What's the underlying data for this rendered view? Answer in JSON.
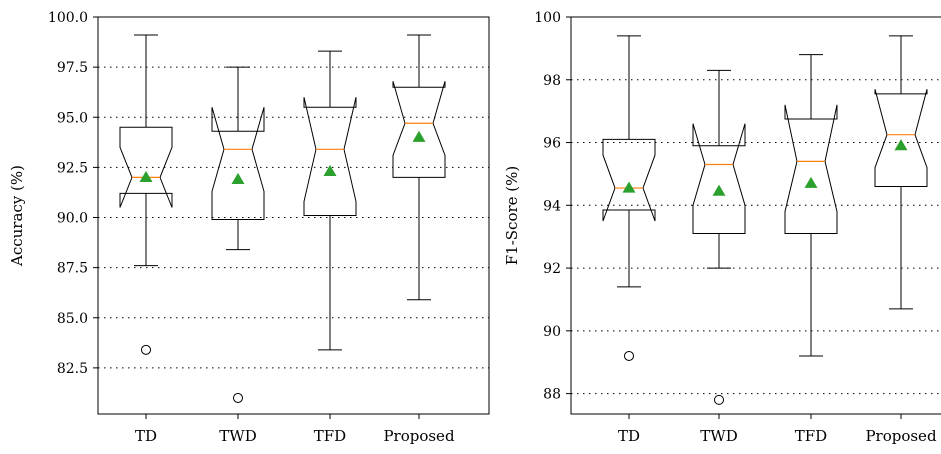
{
  "chart_data": [
    {
      "type": "box",
      "ylabel": "Accuracy (%)",
      "ylim": [
        80.2,
        100.0
      ],
      "yticks": [
        82.5,
        85.0,
        87.5,
        90.0,
        92.5,
        95.0,
        97.5,
        100.0
      ],
      "ytick_labels": [
        "82.5",
        "85.0",
        "87.5",
        "90.0",
        "92.5",
        "95.0",
        "97.5",
        "100.0"
      ],
      "grid": "horizontal-dotted",
      "notched": true,
      "categories": [
        "TD",
        "TWD",
        "TFD",
        "Proposed"
      ],
      "boxes": [
        {
          "whislo": 87.6,
          "q1": 91.2,
          "med": 92.0,
          "q3": 94.5,
          "whishi": 99.1,
          "mean": 92.0,
          "ci_lo": 90.5,
          "ci_hi": 93.5,
          "fliers": [
            83.4
          ]
        },
        {
          "whislo": 88.4,
          "q1": 89.9,
          "med": 93.4,
          "q3": 94.3,
          "whishi": 97.5,
          "mean": 91.9,
          "ci_lo": 91.3,
          "ci_hi": 95.5,
          "fliers": [
            81.0
          ]
        },
        {
          "whislo": 83.4,
          "q1": 90.1,
          "med": 93.4,
          "q3": 95.5,
          "whishi": 98.3,
          "mean": 92.3,
          "ci_lo": 90.8,
          "ci_hi": 96.0,
          "fliers": []
        },
        {
          "whislo": 85.9,
          "q1": 92.0,
          "med": 94.7,
          "q3": 96.5,
          "whishi": 99.1,
          "mean": 94.0,
          "ci_lo": 93.1,
          "ci_hi": 96.8,
          "fliers": []
        }
      ]
    },
    {
      "type": "box",
      "ylabel": "F1-Score (%)",
      "ylim": [
        87.35,
        100.0
      ],
      "yticks": [
        88,
        90,
        92,
        94,
        96,
        98,
        100
      ],
      "ytick_labels": [
        "88",
        "90",
        "92",
        "94",
        "96",
        "98",
        "100"
      ],
      "grid": "horizontal-dotted",
      "notched": true,
      "categories": [
        "TD",
        "TWD",
        "TFD",
        "Proposed"
      ],
      "boxes": [
        {
          "whislo": 91.4,
          "q1": 93.85,
          "med": 94.55,
          "q3": 96.1,
          "whishi": 99.4,
          "mean": 94.55,
          "ci_lo": 93.5,
          "ci_hi": 95.6,
          "fliers": [
            89.2
          ]
        },
        {
          "whislo": 92.0,
          "q1": 93.1,
          "med": 95.3,
          "q3": 95.9,
          "whishi": 98.3,
          "mean": 94.45,
          "ci_lo": 94.0,
          "ci_hi": 96.6,
          "fliers": [
            87.8
          ]
        },
        {
          "whislo": 89.2,
          "q1": 93.1,
          "med": 95.4,
          "q3": 96.75,
          "whishi": 98.8,
          "mean": 94.7,
          "ci_lo": 93.8,
          "ci_hi": 97.2,
          "fliers": []
        },
        {
          "whislo": 90.7,
          "q1": 94.6,
          "med": 96.25,
          "q3": 97.55,
          "whishi": 99.4,
          "mean": 95.9,
          "ci_lo": 95.2,
          "ci_hi": 97.7,
          "fliers": []
        }
      ]
    }
  ],
  "colors": {
    "box": "#000000",
    "median": "#ff7f0e",
    "mean_marker": "#2ca02c",
    "grid": "#000000"
  }
}
